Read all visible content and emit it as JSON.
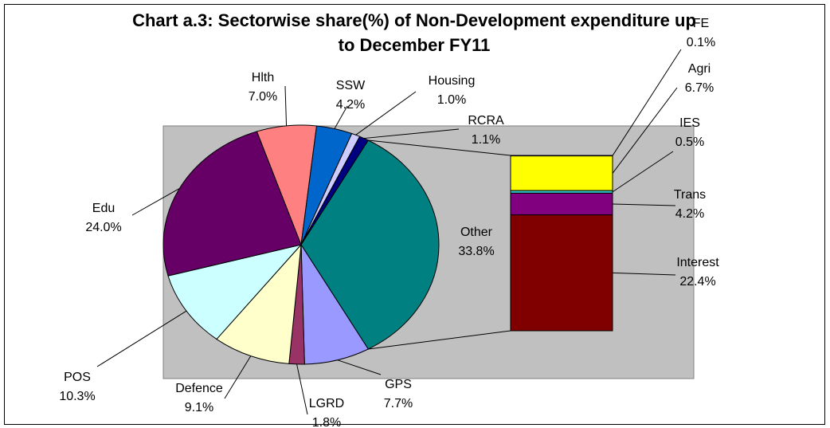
{
  "chart_data": {
    "type": "pie",
    "title": "Chart a.3: Sectorwise share(%) of Non-Development expenditure up to December FY11",
    "categories": [
      "Other",
      "GPS",
      "LGRD",
      "Defence",
      "POS",
      "Edu",
      "Hlth",
      "SSW",
      "Housing",
      "RCRA"
    ],
    "values": [
      33.8,
      7.7,
      1.8,
      9.1,
      10.3,
      24.0,
      7.0,
      4.2,
      1.0,
      1.1
    ],
    "value_labels": [
      "33.8%",
      "7.7%",
      "1.8%",
      "9.1%",
      "10.3%",
      "24.0%",
      "7.0%",
      "4.2%",
      "1.0%",
      "1.1%"
    ],
    "colors": [
      "#008080",
      "#9999FF",
      "#993366",
      "#FFFFCC",
      "#CCFFFF",
      "#660066",
      "#FF8080",
      "#0066CC",
      "#CCCCFF",
      "#000080"
    ],
    "breakdown": {
      "categories": [
        "FE",
        "Agri",
        "IES",
        "Trans",
        "Interest"
      ],
      "values": [
        0.1,
        6.7,
        0.5,
        4.2,
        22.4
      ],
      "value_labels": [
        "0.1%",
        "6.7%",
        "0.5%",
        "4.2%",
        "22.4%"
      ],
      "colors": [
        "#CCFFFF",
        "#FFFF00",
        "#33CCCC",
        "#800080",
        "#800000"
      ]
    }
  }
}
